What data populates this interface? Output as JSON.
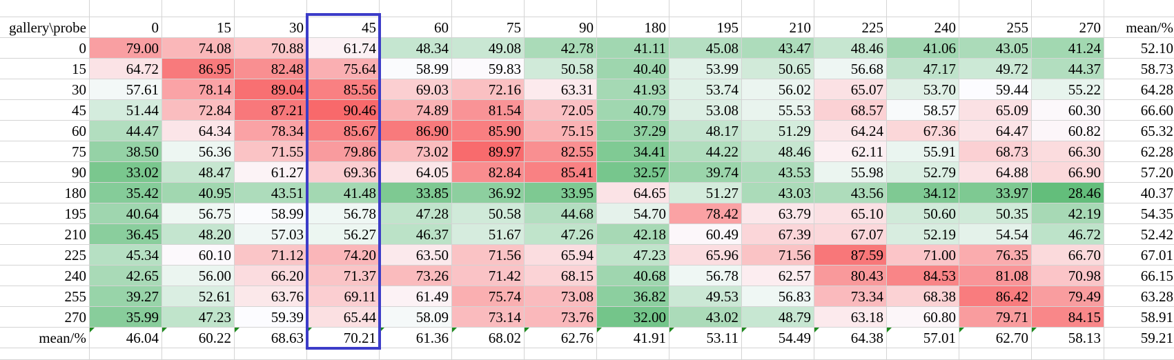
{
  "sheet": {
    "corner_label": "gallery\\probe",
    "probe_headers": [
      "0",
      "15",
      "30",
      "45",
      "60",
      "75",
      "90",
      "180",
      "195",
      "210",
      "225",
      "240",
      "255",
      "270"
    ],
    "mean_col_label": "mean/%",
    "mean_row_label": "mean/%",
    "rows": [
      {
        "gallery": "0",
        "values": [
          "79.00",
          "74.08",
          "70.88",
          "61.74",
          "48.34",
          "49.08",
          "42.78",
          "41.11",
          "45.08",
          "43.47",
          "48.46",
          "41.06",
          "43.05",
          "41.24"
        ],
        "mean": "52.10"
      },
      {
        "gallery": "15",
        "values": [
          "64.72",
          "86.95",
          "82.48",
          "75.64",
          "58.99",
          "59.83",
          "50.58",
          "40.40",
          "53.99",
          "50.65",
          "56.68",
          "47.17",
          "49.72",
          "44.37"
        ],
        "mean": "58.73"
      },
      {
        "gallery": "30",
        "values": [
          "57.61",
          "78.14",
          "89.04",
          "85.56",
          "69.03",
          "72.16",
          "63.31",
          "41.93",
          "53.74",
          "56.02",
          "65.07",
          "53.70",
          "59.44",
          "55.22"
        ],
        "mean": "64.28"
      },
      {
        "gallery": "45",
        "values": [
          "51.44",
          "72.84",
          "87.21",
          "90.46",
          "74.89",
          "81.54",
          "72.05",
          "40.79",
          "53.08",
          "55.53",
          "68.57",
          "58.57",
          "65.09",
          "60.30"
        ],
        "mean": "66.60"
      },
      {
        "gallery": "60",
        "values": [
          "44.47",
          "64.34",
          "78.34",
          "85.67",
          "86.90",
          "85.90",
          "75.15",
          "37.29",
          "48.17",
          "51.29",
          "64.24",
          "67.36",
          "64.47",
          "60.82"
        ],
        "mean": "65.32"
      },
      {
        "gallery": "75",
        "values": [
          "38.50",
          "56.36",
          "71.55",
          "79.86",
          "73.02",
          "89.97",
          "82.55",
          "34.41",
          "44.22",
          "48.46",
          "62.11",
          "55.91",
          "68.73",
          "66.30"
        ],
        "mean": "62.28"
      },
      {
        "gallery": "90",
        "values": [
          "33.02",
          "48.47",
          "61.27",
          "69.36",
          "64.05",
          "82.84",
          "85.41",
          "32.57",
          "39.74",
          "43.53",
          "55.98",
          "52.79",
          "64.88",
          "66.90"
        ],
        "mean": "57.20"
      },
      {
        "gallery": "180",
        "values": [
          "35.42",
          "40.95",
          "43.51",
          "41.48",
          "33.85",
          "36.92",
          "33.95",
          "64.65",
          "51.27",
          "43.03",
          "43.56",
          "34.12",
          "33.97",
          "28.46"
        ],
        "mean": "40.37"
      },
      {
        "gallery": "195",
        "values": [
          "40.64",
          "56.75",
          "58.99",
          "56.78",
          "47.28",
          "50.58",
          "44.68",
          "54.70",
          "78.42",
          "63.79",
          "65.10",
          "50.60",
          "50.35",
          "42.19"
        ],
        "mean": "54.35"
      },
      {
        "gallery": "210",
        "values": [
          "36.45",
          "48.20",
          "57.03",
          "56.27",
          "46.37",
          "51.67",
          "47.26",
          "42.18",
          "60.49",
          "67.39",
          "67.07",
          "52.19",
          "54.54",
          "46.72"
        ],
        "mean": "52.42"
      },
      {
        "gallery": "225",
        "values": [
          "45.34",
          "60.10",
          "71.12",
          "74.20",
          "63.50",
          "71.56",
          "65.94",
          "47.23",
          "65.96",
          "71.56",
          "87.59",
          "71.00",
          "76.35",
          "66.70"
        ],
        "mean": "67.01"
      },
      {
        "gallery": "240",
        "values": [
          "42.65",
          "56.00",
          "66.20",
          "71.37",
          "73.26",
          "71.42",
          "68.15",
          "40.68",
          "56.78",
          "62.57",
          "80.43",
          "84.53",
          "81.08",
          "70.98"
        ],
        "mean": "66.15"
      },
      {
        "gallery": "255",
        "values": [
          "39.27",
          "52.61",
          "63.76",
          "69.11",
          "61.49",
          "75.74",
          "73.08",
          "36.82",
          "49.53",
          "56.83",
          "73.34",
          "68.38",
          "86.42",
          "79.49"
        ],
        "mean": "63.28"
      },
      {
        "gallery": "270",
        "values": [
          "35.99",
          "47.23",
          "59.39",
          "65.44",
          "58.09",
          "73.14",
          "73.76",
          "32.00",
          "43.02",
          "48.79",
          "63.18",
          "60.80",
          "79.71",
          "84.15"
        ],
        "mean": "58.91"
      }
    ],
    "column_means": [
      "46.04",
      "60.22",
      "68.63",
      "70.21",
      "61.36",
      "68.02",
      "62.76",
      "41.91",
      "53.11",
      "54.49",
      "64.38",
      "57.01",
      "62.70",
      "58.13"
    ],
    "overall_mean": "59.21",
    "highlighted_probe": "45",
    "colors": {
      "low": "#63be7b",
      "mid": "#fcfcff",
      "high": "#f8696b",
      "grid": "#d4d4d4",
      "highlight_border": "#3c3cc8",
      "comment_flag": "#1e8a1e"
    },
    "scale_range": [
      28.46,
      90.46
    ]
  }
}
